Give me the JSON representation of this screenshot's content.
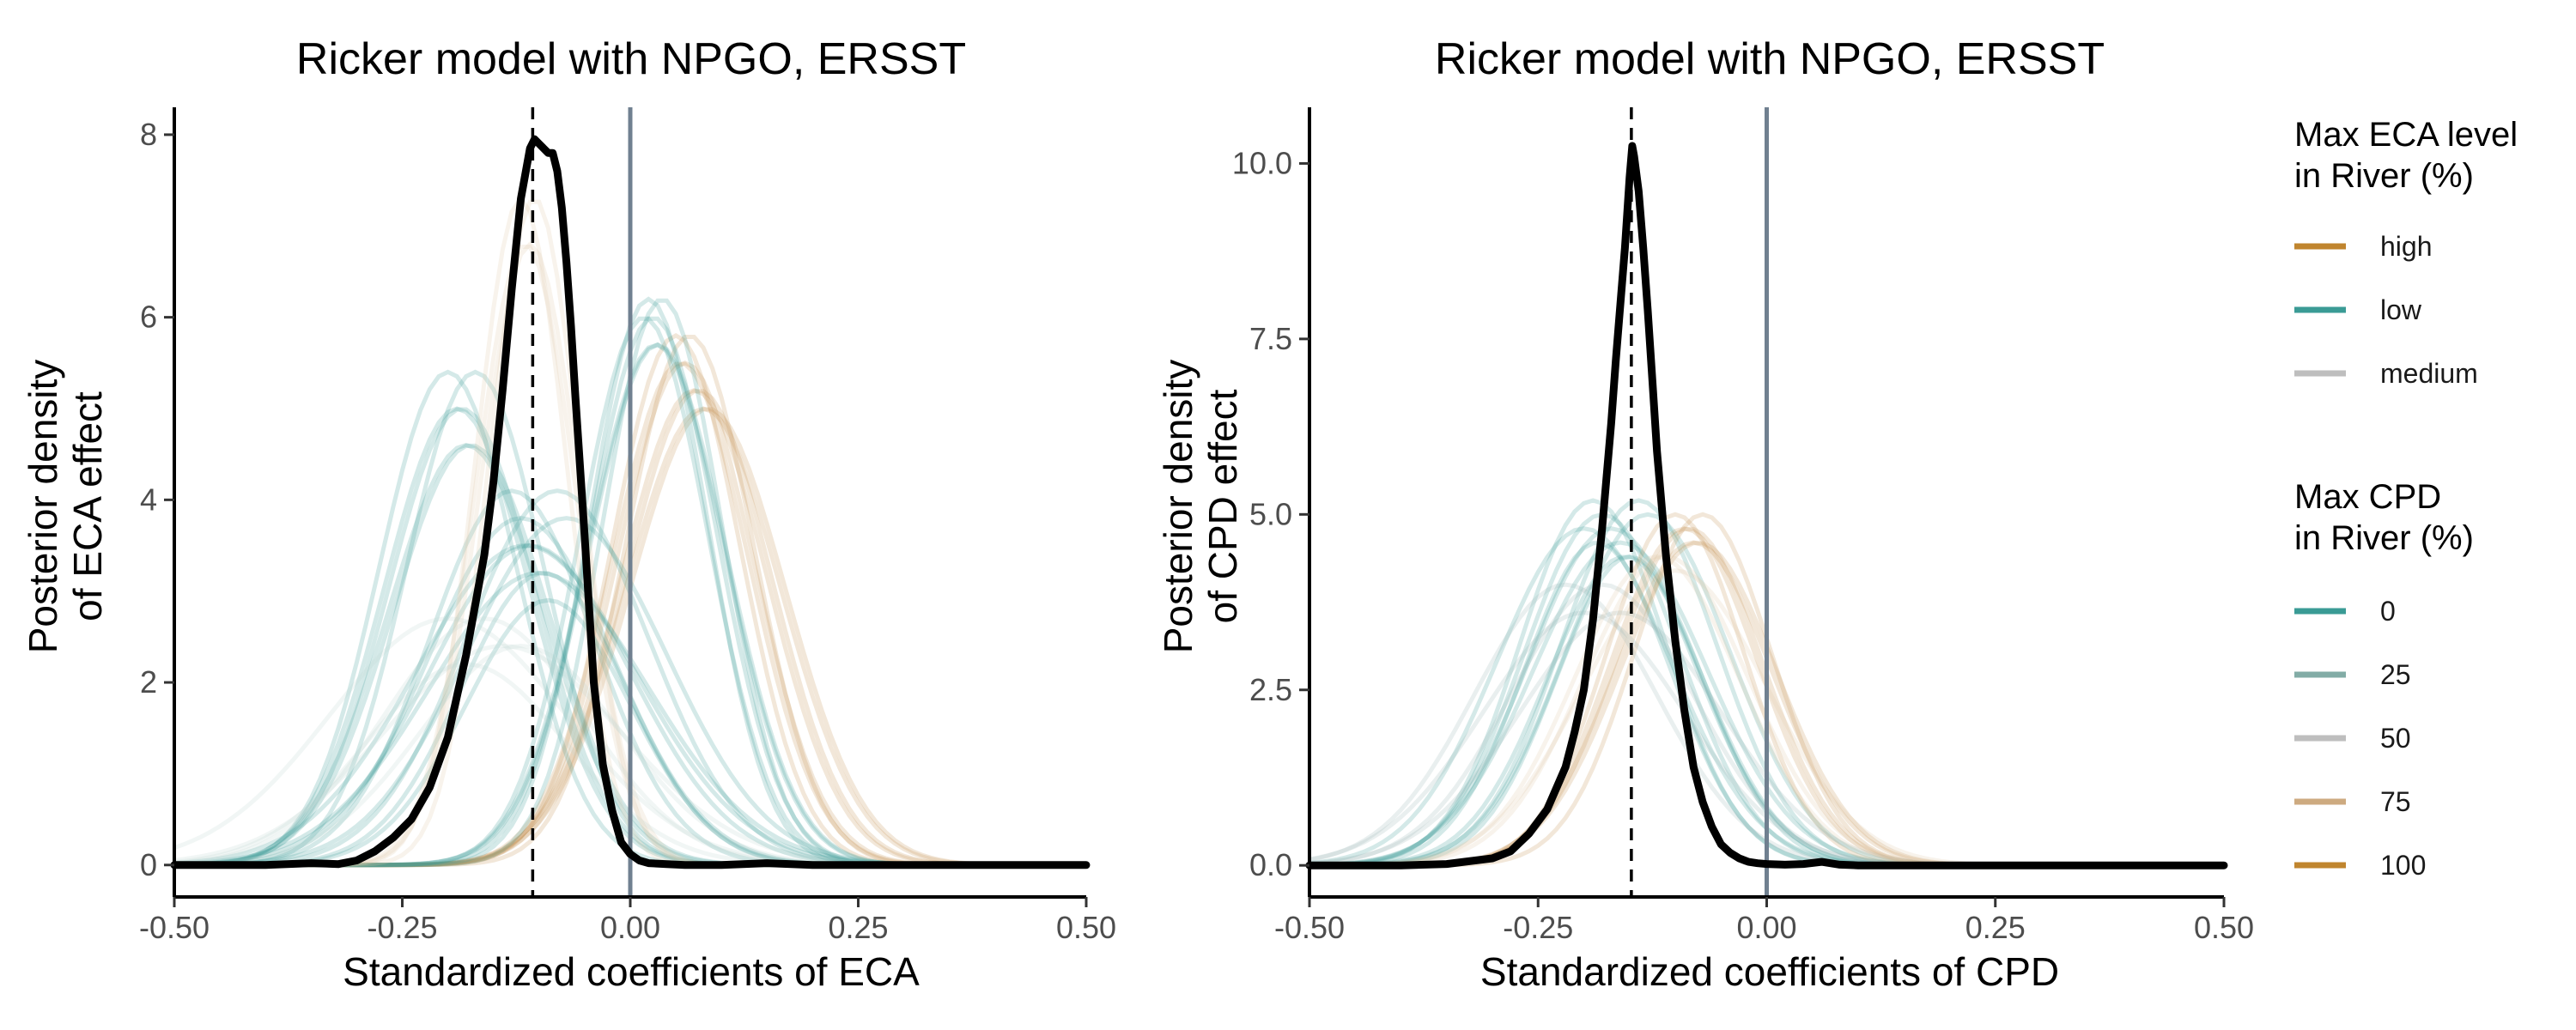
{
  "chart_data": [
    {
      "type": "line",
      "title": "Ricker model with NPGO, ERSST",
      "xlabel": "Standardized coefficients of ECA",
      "ylabel_lines": [
        "Posterior density",
        "of ECA effect"
      ],
      "xlim": [
        -0.5,
        0.5
      ],
      "ylim": [
        -0.35,
        8.3
      ],
      "xticks": [
        -0.5,
        -0.25,
        0.0,
        0.25,
        0.5
      ],
      "xtick_labels": [
        "-0.50",
        "-0.25",
        "0.00",
        "0.25",
        "0.50"
      ],
      "yticks": [
        0,
        2,
        4,
        6,
        8
      ],
      "ytick_labels": [
        "0",
        "2",
        "4",
        "6",
        "8"
      ],
      "grid": false,
      "reference_lines": {
        "dashed_vline_x": -0.107,
        "solid_vline_x": 0.0
      },
      "main_series": {
        "name": "overall posterior",
        "color": "#000000",
        "x": [
          -0.5,
          -0.4,
          -0.35,
          -0.32,
          -0.3,
          -0.28,
          -0.26,
          -0.24,
          -0.22,
          -0.2,
          -0.18,
          -0.16,
          -0.15,
          -0.14,
          -0.13,
          -0.12,
          -0.11,
          -0.105,
          -0.1,
          -0.095,
          -0.09,
          -0.085,
          -0.08,
          -0.075,
          -0.07,
          -0.065,
          -0.06,
          -0.05,
          -0.04,
          -0.03,
          -0.02,
          -0.01,
          0.0,
          0.01,
          0.02,
          0.04,
          0.06,
          0.1,
          0.15,
          0.2,
          0.3,
          0.4,
          0.5
        ],
        "y": [
          0.0,
          0.0,
          0.02,
          0.01,
          0.05,
          0.15,
          0.3,
          0.5,
          0.85,
          1.4,
          2.3,
          3.4,
          4.2,
          5.2,
          6.3,
          7.3,
          7.85,
          7.95,
          7.9,
          7.85,
          7.8,
          7.8,
          7.6,
          7.2,
          6.6,
          5.9,
          5.1,
          3.6,
          2.0,
          1.1,
          0.6,
          0.25,
          0.12,
          0.05,
          0.02,
          0.01,
          0.0,
          0.0,
          0.02,
          0.0,
          0.0,
          0.0,
          0.0
        ]
      },
      "ensemble_groups": [
        {
          "color": "#c29053",
          "mus": [
            0.05,
            0.06,
            0.07,
            0.08,
            0.065,
            0.055,
            0.075,
            0.085
          ],
          "sigmas": [
            0.07,
            0.075,
            0.08,
            0.085
          ],
          "peaks": [
            5.8,
            5.5,
            5.2,
            5.0
          ]
        },
        {
          "color": "#3a9b95",
          "mus": [
            0.02,
            0.025,
            0.03,
            0.035,
            0.015,
            0.028
          ],
          "sigmas": [
            0.065,
            0.07,
            0.075
          ],
          "peaks": [
            6.2,
            6.0,
            5.7
          ]
        },
        {
          "color": "#3a9b95",
          "mus": [
            -0.2,
            -0.19,
            -0.18,
            -0.17,
            -0.185,
            -0.175
          ],
          "sigmas": [
            0.075,
            0.08,
            0.085
          ],
          "peaks": [
            5.4,
            5.0,
            4.6
          ]
        },
        {
          "color": "#3a9b95",
          "mus": [
            -0.13,
            -0.12,
            -0.11,
            -0.1,
            -0.09,
            -0.08,
            -0.07,
            -0.115,
            -0.095
          ],
          "sigmas": [
            0.09,
            0.1,
            0.11,
            0.12
          ],
          "peaks": [
            4.1,
            3.8,
            3.5,
            3.2,
            2.9
          ]
        },
        {
          "color": "#e0c9a8",
          "mus": [
            -0.12,
            -0.11,
            -0.105,
            -0.115
          ],
          "sigmas": [
            0.05,
            0.055
          ],
          "peaks": [
            7.3,
            6.8
          ]
        },
        {
          "color": "#bfd4d2",
          "mus": [
            -0.16,
            -0.14,
            -0.18,
            -0.2,
            -0.12
          ],
          "sigmas": [
            0.11,
            0.13
          ],
          "peaks": [
            2.7,
            2.4,
            2.2
          ]
        }
      ]
    },
    {
      "type": "line",
      "title": "Ricker model with NPGO, ERSST",
      "xlabel": "Standardized coefficients of CPD",
      "ylabel_lines": [
        "Posterior density",
        "of CPD effect"
      ],
      "xlim": [
        -0.5,
        0.5
      ],
      "ylim": [
        -0.45,
        10.8
      ],
      "xticks": [
        -0.5,
        -0.25,
        0.0,
        0.25,
        0.5
      ],
      "xtick_labels": [
        "-0.50",
        "-0.25",
        "0.00",
        "0.25",
        "0.50"
      ],
      "yticks": [
        0,
        2.5,
        5,
        7.5,
        10
      ],
      "ytick_labels": [
        "0.0",
        "2.5",
        "5.0",
        "7.5",
        "10.0"
      ],
      "grid": false,
      "reference_lines": {
        "dashed_vline_x": -0.148,
        "solid_vline_x": 0.0
      },
      "main_series": {
        "name": "overall posterior",
        "color": "#000000",
        "x": [
          -0.5,
          -0.4,
          -0.35,
          -0.3,
          -0.28,
          -0.26,
          -0.24,
          -0.22,
          -0.21,
          -0.2,
          -0.19,
          -0.18,
          -0.17,
          -0.165,
          -0.16,
          -0.155,
          -0.15,
          -0.147,
          -0.145,
          -0.14,
          -0.135,
          -0.13,
          -0.125,
          -0.12,
          -0.11,
          -0.1,
          -0.09,
          -0.08,
          -0.07,
          -0.06,
          -0.05,
          -0.04,
          -0.03,
          -0.02,
          -0.01,
          0.0,
          0.02,
          0.04,
          0.06,
          0.08,
          0.1,
          0.2,
          0.3,
          0.4,
          0.5
        ],
        "y": [
          0.0,
          0.0,
          0.02,
          0.1,
          0.2,
          0.45,
          0.8,
          1.4,
          1.9,
          2.5,
          3.5,
          4.8,
          6.3,
          7.2,
          8.0,
          8.8,
          9.8,
          10.25,
          10.1,
          9.6,
          8.8,
          7.9,
          6.9,
          5.9,
          4.4,
          3.2,
          2.2,
          1.4,
          0.9,
          0.55,
          0.3,
          0.18,
          0.1,
          0.05,
          0.03,
          0.02,
          0.01,
          0.02,
          0.05,
          0.01,
          0.0,
          0.0,
          0.0,
          0.0,
          0.0
        ]
      },
      "ensemble_groups": [
        {
          "color": "#3a9b95",
          "mus": [
            -0.19,
            -0.18,
            -0.17,
            -0.16,
            -0.15,
            -0.14,
            -0.13,
            -0.2,
            -0.185,
            -0.155
          ],
          "sigmas": [
            0.08,
            0.085,
            0.09,
            0.095
          ],
          "peaks": [
            5.2,
            5.0,
            4.8,
            4.6,
            4.4
          ]
        },
        {
          "color": "#c29053",
          "mus": [
            -0.1,
            -0.09,
            -0.08,
            -0.07,
            -0.085,
            -0.075
          ],
          "sigmas": [
            0.075,
            0.08,
            0.085
          ],
          "peaks": [
            5.0,
            4.8,
            4.6
          ]
        },
        {
          "color": "#9bb8b5",
          "mus": [
            -0.22,
            -0.2,
            -0.18,
            -0.16
          ],
          "sigmas": [
            0.1,
            0.11
          ],
          "peaks": [
            4.0,
            3.6
          ]
        },
        {
          "color": "#e0c9a8",
          "mus": [
            -0.12,
            -0.1,
            -0.11
          ],
          "sigmas": [
            0.09,
            0.1
          ],
          "peaks": [
            4.4,
            4.2
          ]
        }
      ]
    }
  ],
  "legend": {
    "eca": {
      "title_lines": [
        "Max ECA level",
        "in River (%)"
      ],
      "items": [
        {
          "label": "high",
          "color": "#c0852e"
        },
        {
          "label": "low",
          "color": "#3a9b95"
        },
        {
          "label": "medium",
          "color": "#bebebe"
        }
      ]
    },
    "cpd": {
      "title_lines": [
        "Max CPD",
        "in River (%)"
      ],
      "items": [
        {
          "label": "0",
          "color": "#3a9b95"
        },
        {
          "label": "25",
          "color": "#82aca6"
        },
        {
          "label": "50",
          "color": "#bebebe"
        },
        {
          "label": "75",
          "color": "#cdaa80"
        },
        {
          "label": "100",
          "color": "#c0852e"
        }
      ]
    }
  },
  "colors": {
    "axis": "#000000",
    "tick_text": "#4d4d4d",
    "zero_line": "#708090",
    "main_curve": "#000000"
  }
}
